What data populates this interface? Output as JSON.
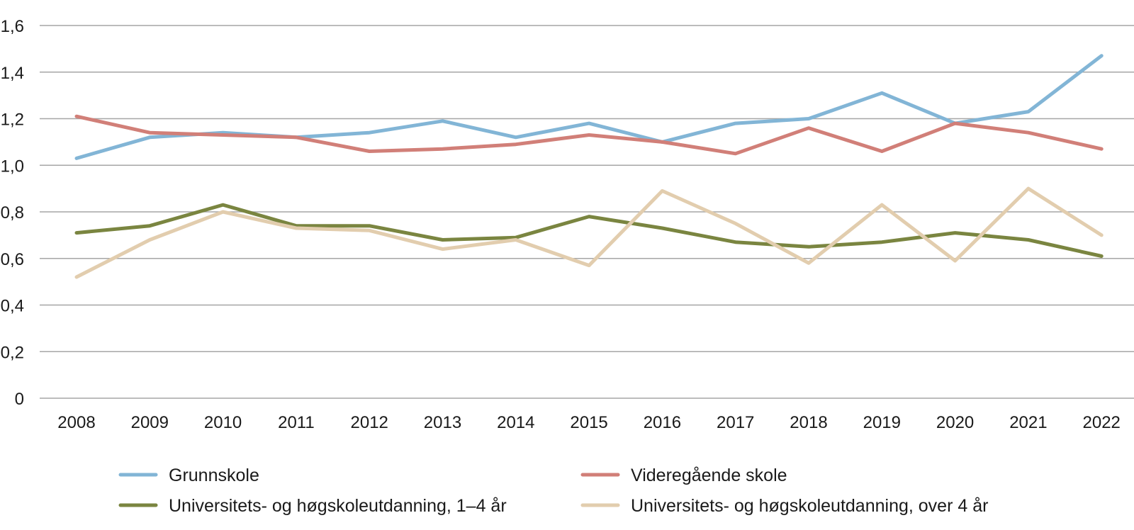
{
  "chart_data": {
    "type": "line",
    "title": "",
    "xlabel": "",
    "ylabel": "",
    "categories": [
      "2008",
      "2009",
      "2010",
      "2011",
      "2012",
      "2013",
      "2014",
      "2015",
      "2016",
      "2017",
      "2018",
      "2019",
      "2020",
      "2021",
      "2022"
    ],
    "ylim": [
      0,
      1.6
    ],
    "yticks": [
      0,
      0.2,
      0.4,
      0.6,
      0.8,
      1.0,
      1.2,
      1.4,
      1.6
    ],
    "ytick_labels": [
      "0",
      "0,2",
      "0,4",
      "0,6",
      "0,8",
      "1,0",
      "1,2",
      "1,4",
      "1,6"
    ],
    "grid": true,
    "legend_position": "bottom",
    "series": [
      {
        "name": "Grunnskole",
        "color": "#82b5d6",
        "values": [
          1.03,
          1.12,
          1.14,
          1.12,
          1.14,
          1.19,
          1.12,
          1.18,
          1.1,
          1.18,
          1.2,
          1.31,
          1.18,
          1.23,
          1.47
        ]
      },
      {
        "name": "Videregående skole",
        "color": "#d17f78",
        "values": [
          1.21,
          1.14,
          1.13,
          1.12,
          1.06,
          1.07,
          1.09,
          1.13,
          1.1,
          1.05,
          1.16,
          1.06,
          1.18,
          1.14,
          1.07
        ]
      },
      {
        "name": "Universitets- og høgskoleutdanning, 1–4 år",
        "color": "#7a8540",
        "values": [
          0.71,
          0.74,
          0.83,
          0.74,
          0.74,
          0.68,
          0.69,
          0.78,
          0.73,
          0.67,
          0.65,
          0.67,
          0.71,
          0.68,
          0.61
        ]
      },
      {
        "name": "Universitets- og høgskoleutdanning, over 4 år",
        "color": "#e2cdae",
        "values": [
          0.52,
          0.68,
          0.8,
          0.73,
          0.72,
          0.64,
          0.68,
          0.57,
          0.89,
          0.75,
          0.58,
          0.83,
          0.59,
          0.9,
          0.7
        ]
      }
    ]
  }
}
